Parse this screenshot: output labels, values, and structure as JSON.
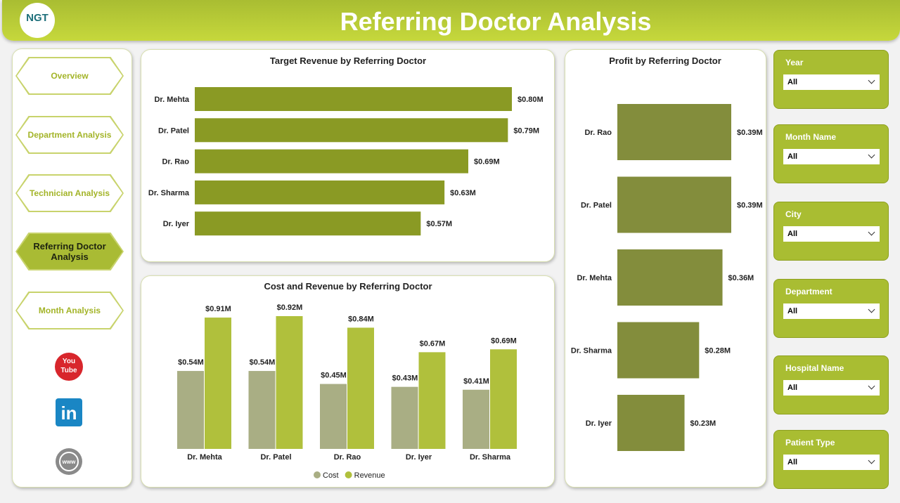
{
  "header": {
    "logo": "NGT",
    "title": "Referring Doctor Analysis"
  },
  "nav": {
    "items": [
      "Overview",
      "Department Analysis",
      "Technician Analysis",
      "Referring Doctor Analysis",
      "Month Analysis"
    ],
    "active": 3
  },
  "social": {
    "youtube": [
      "You",
      "Tube"
    ],
    "linkedin": "in",
    "web": "www"
  },
  "filters": [
    {
      "label": "Year",
      "value": "All"
    },
    {
      "label": "Month Name",
      "value": "All"
    },
    {
      "label": "City",
      "value": "All"
    },
    {
      "label": "Department",
      "value": "All"
    },
    {
      "label": "Hospital Name",
      "value": "All"
    },
    {
      "label": "Patient Type",
      "value": "All"
    }
  ],
  "chart_data": [
    {
      "type": "hbar",
      "title": "Target Revenue by Referring Doctor",
      "categories": [
        "Dr. Mehta",
        "Dr. Patel",
        "Dr. Rao",
        "Dr. Sharma",
        "Dr. Iyer"
      ],
      "values": [
        0.8,
        0.79,
        0.69,
        0.63,
        0.57
      ],
      "value_labels": [
        "$0.80M",
        "$0.79M",
        "$0.69M",
        "$0.63M",
        "$0.57M"
      ],
      "color": "#8a9a24"
    },
    {
      "type": "grouped_bar",
      "title": "Cost and Revenue by Referring Doctor",
      "categories": [
        "Dr. Mehta",
        "Dr. Patel",
        "Dr. Rao",
        "Dr. Iyer",
        "Dr. Sharma"
      ],
      "series": [
        {
          "name": "Cost",
          "color": "#a9ae84",
          "values": [
            0.54,
            0.54,
            0.45,
            0.43,
            0.41
          ],
          "value_labels": [
            "$0.54M",
            "$0.54M",
            "$0.45M",
            "$0.43M",
            "$0.41M"
          ]
        },
        {
          "name": "Revenue",
          "color": "#b0c03c",
          "values": [
            0.91,
            0.92,
            0.84,
            0.67,
            0.69
          ],
          "value_labels": [
            "$0.91M",
            "$0.92M",
            "$0.84M",
            "$0.67M",
            "$0.69M"
          ]
        }
      ]
    },
    {
      "type": "hbar",
      "title": "Profit by Referring Doctor",
      "categories": [
        "Dr. Rao",
        "Dr. Patel",
        "Dr. Mehta",
        "Dr. Sharma",
        "Dr. Iyer"
      ],
      "values": [
        0.39,
        0.39,
        0.36,
        0.28,
        0.23
      ],
      "value_labels": [
        "$0.39M",
        "$0.39M",
        "$0.36M",
        "$0.28M",
        "$0.23M"
      ],
      "color": "#838d3c"
    }
  ]
}
